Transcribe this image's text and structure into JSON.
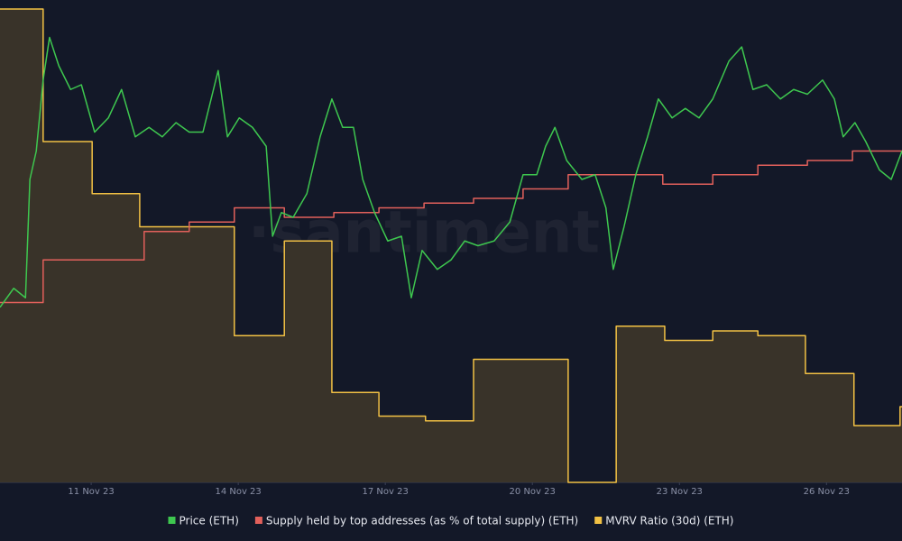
{
  "chart_data": {
    "type": "line",
    "watermark": "·santiment",
    "xlim": [
      9.14,
      27.54
    ],
    "ylim": [
      0,
      100
    ],
    "xticks": [
      {
        "value": 11,
        "label": "11 Nov 23"
      },
      {
        "value": 14,
        "label": "14 Nov 23"
      },
      {
        "value": 17,
        "label": "17 Nov 23"
      },
      {
        "value": 20,
        "label": "20 Nov 23"
      },
      {
        "value": 23,
        "label": "23 Nov 23"
      },
      {
        "value": 26,
        "label": "26 Nov 23"
      }
    ],
    "series": [
      {
        "name": "MVRV Ratio (30d) (ETH)",
        "color": "#f2c144",
        "step": true,
        "area": true,
        "x": [
          9.14,
          10.02,
          11.02,
          11.99,
          13.92,
          14.94,
          15.91,
          16.87,
          17.82,
          18.8,
          20.73,
          21.71,
          22.7,
          23.68,
          24.6,
          25.57,
          26.56,
          27.5
        ],
        "values": [
          100,
          72,
          61,
          54,
          31,
          51,
          19,
          14,
          13,
          26,
          0,
          33,
          30,
          32,
          31,
          23,
          12,
          16
        ]
      },
      {
        "name": "Supply held by top addresses (as % of total supply) (ETH)",
        "color": "#e2605b",
        "step": true,
        "area": false,
        "x": [
          9.14,
          10.02,
          12.08,
          13.0,
          13.92,
          14.94,
          15.95,
          16.87,
          17.79,
          18.8,
          19.81,
          20.73,
          22.66,
          23.68,
          24.6,
          25.61,
          26.53
        ],
        "values": [
          38,
          47,
          53,
          55,
          58,
          56,
          57,
          58,
          59,
          60,
          62,
          65,
          63,
          65,
          67,
          68,
          70
        ]
      },
      {
        "name": "Price (ETH)",
        "color": "#3ec74f",
        "step": false,
        "area": false,
        "x": [
          9.14,
          9.42,
          9.66,
          9.75,
          9.88,
          10.02,
          10.15,
          10.34,
          10.58,
          10.8,
          11.07,
          11.35,
          11.62,
          11.9,
          12.18,
          12.45,
          12.73,
          13.0,
          13.28,
          13.59,
          13.78,
          14.02,
          14.29,
          14.57,
          14.7,
          14.88,
          15.12,
          15.4,
          15.67,
          15.91,
          16.13,
          16.35,
          16.54,
          16.78,
          17.05,
          17.33,
          17.53,
          17.75,
          18.06,
          18.34,
          18.62,
          18.89,
          19.22,
          19.54,
          19.81,
          20.09,
          20.27,
          20.46,
          20.7,
          21.01,
          21.28,
          21.5,
          21.65,
          21.87,
          22.11,
          22.35,
          22.57,
          22.85,
          23.12,
          23.4,
          23.68,
          24.01,
          24.27,
          24.5,
          24.78,
          25.06,
          25.33,
          25.61,
          25.92,
          26.16,
          26.34,
          26.58,
          26.8,
          27.08,
          27.32,
          27.54
        ],
        "values": [
          37,
          41,
          39,
          64,
          70,
          85,
          94,
          88,
          83,
          84,
          74,
          77,
          83,
          73,
          75,
          73,
          76,
          74,
          74,
          87,
          73,
          77,
          75,
          71,
          52,
          57,
          56,
          61,
          73,
          81,
          75,
          75,
          64,
          57,
          51,
          52,
          39,
          49,
          45,
          47,
          51,
          50,
          51,
          55,
          65,
          65,
          71,
          75,
          68,
          64,
          65,
          58,
          45,
          54,
          65,
          73,
          81,
          77,
          79,
          77,
          81,
          89,
          92,
          83,
          84,
          81,
          83,
          82,
          85,
          81,
          73,
          76,
          72,
          66,
          64,
          70
        ]
      }
    ]
  }
}
